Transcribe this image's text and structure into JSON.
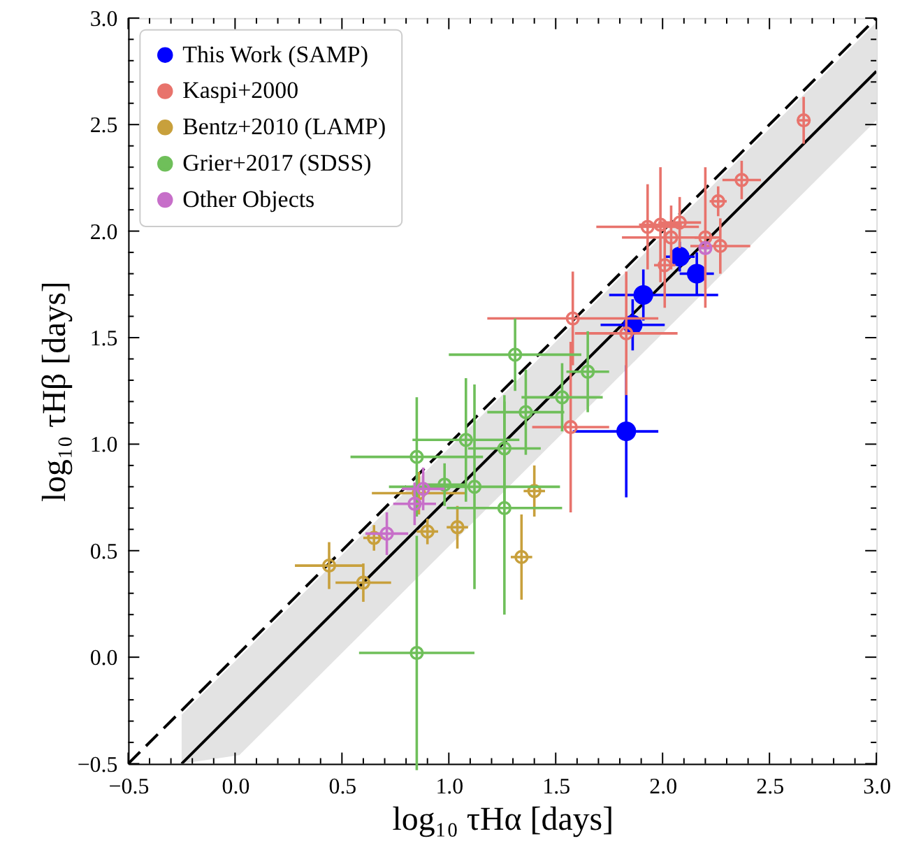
{
  "chart_data": {
    "type": "scatter",
    "xlabel": "log₁₀ τHα [days]",
    "ylabel": "log₁₀ τHβ [days]",
    "xlim": [
      -0.5,
      3.0
    ],
    "ylim": [
      -0.5,
      3.0
    ],
    "xticks": [
      {
        "value": -0.5,
        "label": "−0.5"
      },
      {
        "value": -0.4,
        "label": null
      },
      {
        "value": -0.3,
        "label": null
      },
      {
        "value": -0.2,
        "label": null
      },
      {
        "value": -0.1,
        "label": null
      },
      {
        "value": 0.0,
        "label": "0.0"
      },
      {
        "value": 0.1,
        "label": null
      },
      {
        "value": 0.2,
        "label": null
      },
      {
        "value": 0.3,
        "label": null
      },
      {
        "value": 0.4,
        "label": null
      },
      {
        "value": 0.5,
        "label": "0.5"
      },
      {
        "value": 0.6,
        "label": null
      },
      {
        "value": 0.7,
        "label": null
      },
      {
        "value": 0.8,
        "label": null
      },
      {
        "value": 0.9,
        "label": null
      },
      {
        "value": 1.0,
        "label": "1.0"
      },
      {
        "value": 1.1,
        "label": null
      },
      {
        "value": 1.2,
        "label": null
      },
      {
        "value": 1.3,
        "label": null
      },
      {
        "value": 1.4,
        "label": null
      },
      {
        "value": 1.5,
        "label": "1.5"
      },
      {
        "value": 1.6,
        "label": null
      },
      {
        "value": 1.7,
        "label": null
      },
      {
        "value": 1.8,
        "label": null
      },
      {
        "value": 1.9,
        "label": null
      },
      {
        "value": 2.0,
        "label": "2.0"
      },
      {
        "value": 2.1,
        "label": null
      },
      {
        "value": 2.2,
        "label": null
      },
      {
        "value": 2.3,
        "label": null
      },
      {
        "value": 2.4,
        "label": null
      },
      {
        "value": 2.5,
        "label": "2.5"
      },
      {
        "value": 2.6,
        "label": null
      },
      {
        "value": 2.7,
        "label": null
      },
      {
        "value": 2.8,
        "label": null
      },
      {
        "value": 2.9,
        "label": null
      },
      {
        "value": 3.0,
        "label": "3.0"
      }
    ],
    "yticks": [
      {
        "value": -0.5,
        "label": "−0.5"
      },
      {
        "value": -0.4,
        "label": null
      },
      {
        "value": -0.3,
        "label": null
      },
      {
        "value": -0.2,
        "label": null
      },
      {
        "value": -0.1,
        "label": null
      },
      {
        "value": 0.0,
        "label": "0.0"
      },
      {
        "value": 0.1,
        "label": null
      },
      {
        "value": 0.2,
        "label": null
      },
      {
        "value": 0.3,
        "label": null
      },
      {
        "value": 0.4,
        "label": null
      },
      {
        "value": 0.5,
        "label": "0.5"
      },
      {
        "value": 0.6,
        "label": null
      },
      {
        "value": 0.7,
        "label": null
      },
      {
        "value": 0.8,
        "label": null
      },
      {
        "value": 0.9,
        "label": null
      },
      {
        "value": 1.0,
        "label": "1.0"
      },
      {
        "value": 1.1,
        "label": null
      },
      {
        "value": 1.2,
        "label": null
      },
      {
        "value": 1.3,
        "label": null
      },
      {
        "value": 1.4,
        "label": null
      },
      {
        "value": 1.5,
        "label": "1.5"
      },
      {
        "value": 1.6,
        "label": null
      },
      {
        "value": 1.7,
        "label": null
      },
      {
        "value": 1.8,
        "label": null
      },
      {
        "value": 1.9,
        "label": null
      },
      {
        "value": 2.0,
        "label": "2.0"
      },
      {
        "value": 2.1,
        "label": null
      },
      {
        "value": 2.2,
        "label": null
      },
      {
        "value": 2.3,
        "label": null
      },
      {
        "value": 2.4,
        "label": null
      },
      {
        "value": 2.5,
        "label": "2.5"
      },
      {
        "value": 2.6,
        "label": null
      },
      {
        "value": 2.7,
        "label": null
      },
      {
        "value": 2.8,
        "label": null
      },
      {
        "value": 2.9,
        "label": null
      },
      {
        "value": 3.0,
        "label": "3.0"
      }
    ],
    "grid": false,
    "legend": "top left",
    "marker": "circle",
    "series": [
      {
        "type": "line",
        "color": "#000000",
        "line_style": "solid",
        "marker": "none",
        "x": [
          -0.25,
          0.02,
          3.0
        ],
        "values": [
          -0.5,
          -0.23,
          2.75
        ],
        "lower": [
          -0.5,
          -0.46,
          2.52
        ],
        "upper": [
          -0.27,
          0.0,
          2.98
        ]
      },
      {
        "type": "line",
        "color": "#000000",
        "line_style": "dashed",
        "marker": "none",
        "x": [
          -0.5,
          3.0
        ],
        "values": [
          -0.5,
          3.0
        ]
      },
      {
        "name": "This Work (SAMP)",
        "color": "#0000ff",
        "x": [
          2.08,
          2.16,
          1.91,
          1.86,
          1.83
        ],
        "values": [
          1.88,
          1.8,
          1.7,
          1.56,
          1.06
        ],
        "errors": [
          0.07,
          0.1,
          0.12,
          0.12,
          0.31
        ],
        "xerrors": [
          0.07,
          0.08,
          [
            1.75,
            2.26
          ],
          0.15,
          [
            1.58,
            1.98
          ]
        ]
      },
      {
        "name": "Kaspi+2000",
        "color": "#e8736c",
        "x": [
          2.66,
          2.37,
          2.26,
          1.93,
          1.99,
          2.08,
          2.04,
          2.2,
          2.27,
          2.01,
          1.58,
          1.83,
          1.57
        ],
        "values": [
          2.52,
          2.24,
          2.14,
          2.02,
          2.03,
          2.04,
          1.97,
          1.97,
          1.93,
          1.84,
          1.59,
          1.52,
          1.08
        ],
        "errors": [
          0.11,
          0.09,
          0.07,
          0.2,
          0.27,
          0.12,
          0.15,
          0.33,
          0.13,
          0.2,
          0.22,
          0.29,
          0.4
        ],
        "xerrors": [
          0.03,
          0.09,
          0.04,
          0.24,
          0.1,
          0.1,
          0.23,
          0.05,
          0.14,
          0.05,
          0.4,
          0.24,
          0.18
        ]
      },
      {
        "name": "Bentz+2010 (LAMP)",
        "color": "#c8a03c",
        "x": [
          0.44,
          0.6,
          0.65,
          0.9,
          0.86,
          1.04,
          1.4,
          1.34
        ],
        "values": [
          0.43,
          0.35,
          0.56,
          0.59,
          0.77,
          0.61,
          0.78,
          0.47
        ],
        "errors": [
          0.11,
          0.09,
          0.06,
          0.06,
          0.1,
          0.1,
          0.12,
          0.2
        ],
        "xerrors": [
          0.16,
          0.13,
          0.05,
          0.05,
          0.22,
          0.05,
          0.05,
          0.05
        ]
      },
      {
        "name": "Grier+2017 (SDSS)",
        "color": "#6fbf5a",
        "x": [
          1.31,
          1.65,
          1.53,
          1.36,
          1.08,
          1.26,
          0.85,
          1.12,
          1.26,
          0.85,
          0.98
        ],
        "values": [
          1.42,
          1.34,
          1.22,
          1.15,
          1.02,
          0.98,
          0.94,
          0.8,
          0.7,
          0.02,
          0.81
        ],
        "errors": [
          0.17,
          0.19,
          0.16,
          0.2,
          0.29,
          0.25,
          0.28,
          0.48,
          0.5,
          0.55,
          0.1
        ],
        "xerrors": [
          0.31,
          0.1,
          0.19,
          0.18,
          0.25,
          0.17,
          0.31,
          0.4,
          0.27,
          0.27,
          0.1
        ]
      },
      {
        "name": "Other Objects",
        "color": "#c76fc9",
        "x": [
          2.2,
          0.88,
          0.84,
          0.71
        ],
        "values": [
          1.92,
          0.79,
          0.72,
          0.58
        ],
        "errors": [
          0.03,
          0.1,
          0.1,
          0.1
        ],
        "xerrors": [
          0.03,
          0.1,
          0.1,
          0.1
        ]
      }
    ]
  }
}
